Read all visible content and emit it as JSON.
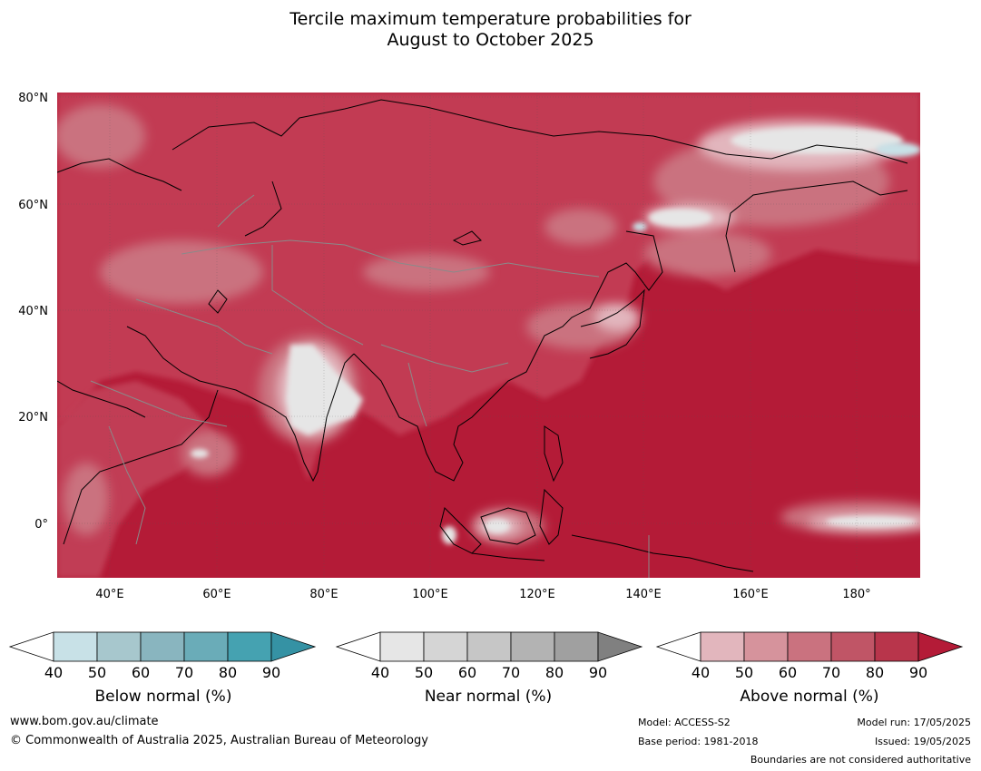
{
  "title": {
    "line1": "Tercile maximum temperature probabilities for",
    "line2": "August to October 2025"
  },
  "map": {
    "lat_labels": [
      "80°N",
      "60°N",
      "40°N",
      "20°N",
      "0°"
    ],
    "lon_labels": [
      "40°E",
      "60°E",
      "80°E",
      "100°E",
      "120°E",
      "140°E",
      "160°E",
      "180°"
    ],
    "colors": {
      "ocean_base": "#b41b37",
      "land_base": "#c23a52",
      "coastline": "#000000",
      "borders": "#808080"
    }
  },
  "colorbars": [
    {
      "label": "Below normal (%)",
      "ticks": [
        "40",
        "50",
        "60",
        "70",
        "80",
        "90"
      ],
      "colors": [
        "#ffffff",
        "#c8e1e7",
        "#a7c7cd",
        "#89b5bf",
        "#6aacb8",
        "#45a2b1",
        "#3592a4"
      ]
    },
    {
      "label": "Near normal (%)",
      "ticks": [
        "40",
        "50",
        "60",
        "70",
        "80",
        "90"
      ],
      "colors": [
        "#ffffff",
        "#e6e6e6",
        "#d5d5d5",
        "#c6c6c6",
        "#b3b3b3",
        "#a0a0a0",
        "#808080"
      ]
    },
    {
      "label": "Above normal (%)",
      "ticks": [
        "40",
        "50",
        "60",
        "70",
        "80",
        "90"
      ],
      "colors": [
        "#ffffff",
        "#e2b6bd",
        "#d6939c",
        "#ca727f",
        "#c05566",
        "#b8354b",
        "#b41b37"
      ]
    }
  ],
  "footer": {
    "website": "www.bom.gov.au/climate",
    "copyright": "© Commonwealth of Australia 2025, Australian Bureau of Meteorology",
    "model": "Model: ACCESS-S2",
    "base_period": "Base period: 1981-2018",
    "model_run": "Model run: 17/05/2025",
    "issued": "Issued: 19/05/2025",
    "boundaries": "Boundaries are not considered authoritative"
  }
}
